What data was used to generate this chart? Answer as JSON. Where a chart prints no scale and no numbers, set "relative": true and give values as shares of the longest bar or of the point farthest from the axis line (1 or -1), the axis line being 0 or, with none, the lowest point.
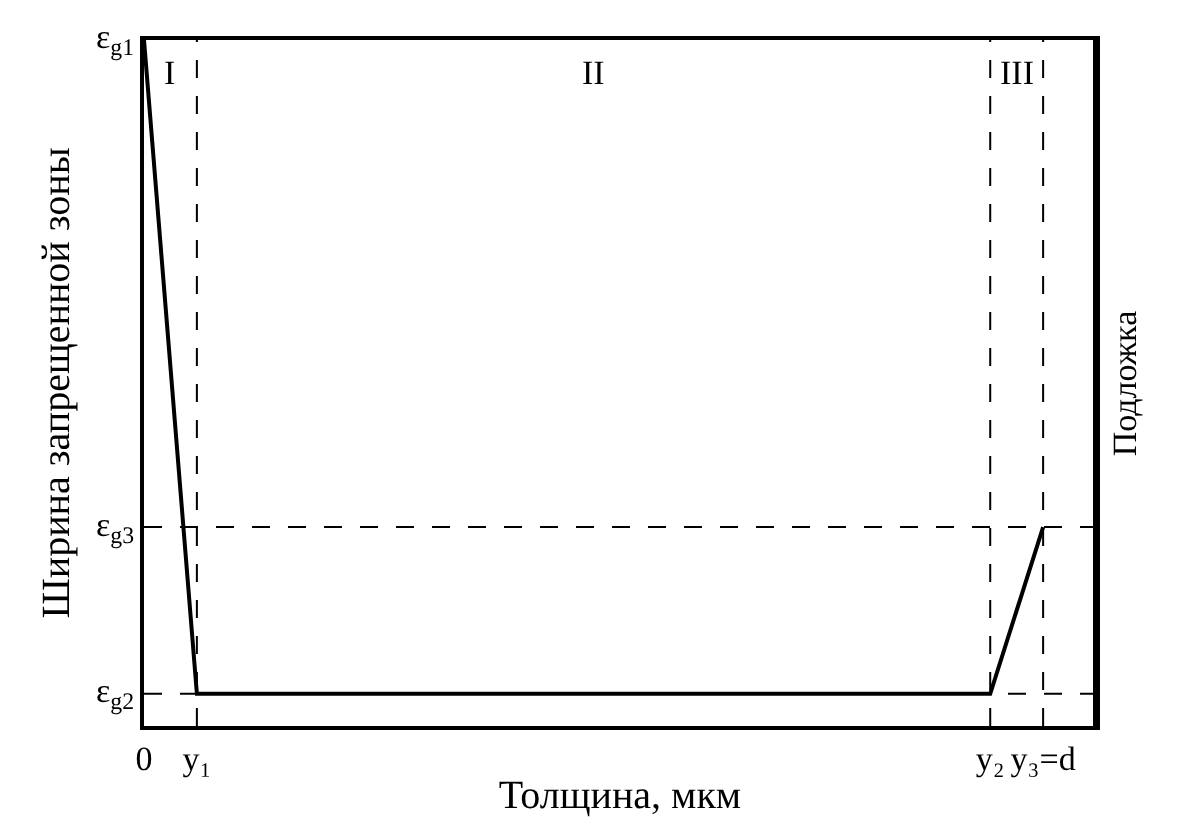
{
  "chart_data": {
    "type": "line",
    "relative": true,
    "xlabel": "Толщина, мкм",
    "ylabel": "Ширина запрещенной зоны",
    "categories": [
      "0",
      "y₁",
      null,
      null,
      null,
      null,
      null,
      null,
      null,
      null,
      null,
      null,
      null,
      null,
      null,
      null,
      "y₂",
      "y₃=d",
      null
    ],
    "series": [
      {
        "color": "#000000",
        "values": [
          1,
          0.047,
          0.047,
          0.047,
          0.047,
          0.047,
          0.047,
          0.047,
          0.047,
          0.047,
          0.047,
          0.047,
          0.047,
          0.047,
          0.047,
          0.047,
          0.047,
          0.29,
          null
        ]
      }
    ],
    "marker": "none",
    "line_style": "solid",
    "ref_lines": [
      {
        "axis": "x",
        "value": "y₁",
        "line_style": "dashed"
      },
      {
        "axis": "x",
        "value": "y₂",
        "line_style": "dashed"
      },
      {
        "axis": "x",
        "value": "y₃=d",
        "line_style": "dashed"
      },
      {
        "axis": "y",
        "value": 0.29,
        "label": "ε$_{g3}$",
        "line_style": "dashed"
      },
      {
        "axis": "y",
        "value": 0.047,
        "label": "ε$_{g2}$",
        "line_style": "dashed"
      }
    ],
    "annotations": [
      {
        "text": "ε$_{g1}$",
        "x": "0",
        "y": 1
      },
      "I",
      "II",
      "III",
      "Подложка"
    ]
  }
}
